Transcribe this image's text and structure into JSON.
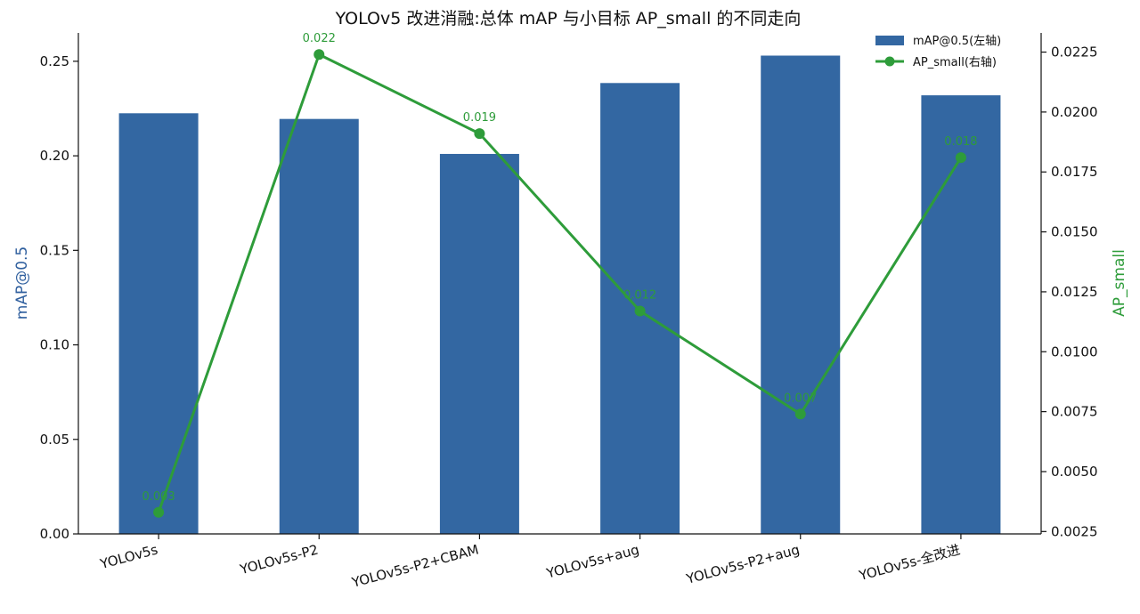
{
  "chart_data": {
    "type": "bar",
    "title": "YOLOv5 改进消融:总体 mAP 与小目标 AP_small 的不同走向",
    "categories": [
      "YOLOv5s",
      "YOLOv5s-P2",
      "YOLOv5s-P2+CBAM",
      "YOLOv5s+aug",
      "YOLOv5s-P2+aug",
      "YOLOv5s-全改进"
    ],
    "ylabel_left": "mAP@0.5",
    "ylabel_right": "AP_small",
    "ylim_left": [
      0,
      0.265
    ],
    "ylim_right": [
      0.0024,
      0.0233
    ],
    "yticks_left": [
      "0.00",
      "0.05",
      "0.10",
      "0.15",
      "0.20",
      "0.25"
    ],
    "yticks_right": [
      "0.0025",
      "0.0050",
      "0.0075",
      "0.0100",
      "0.0125",
      "0.0150",
      "0.0175",
      "0.0200",
      "0.0225"
    ],
    "grid": false,
    "legend_placement": "top-right",
    "series": [
      {
        "name": "mAP@0.5(左轴)",
        "type": "bar",
        "axis": "left",
        "color": "#3367a2",
        "values": [
          0.2225,
          0.2195,
          0.201,
          0.2385,
          0.253,
          0.232
        ]
      },
      {
        "name": "AP_small(右轴)",
        "type": "line",
        "axis": "right",
        "color": "#2e9c3a",
        "values": [
          0.0033,
          0.0224,
          0.0191,
          0.0117,
          0.0074,
          0.0181
        ],
        "data_labels": [
          "0.003",
          "0.022",
          "0.019",
          "0.012",
          "0.007",
          "0.018"
        ]
      }
    ]
  }
}
